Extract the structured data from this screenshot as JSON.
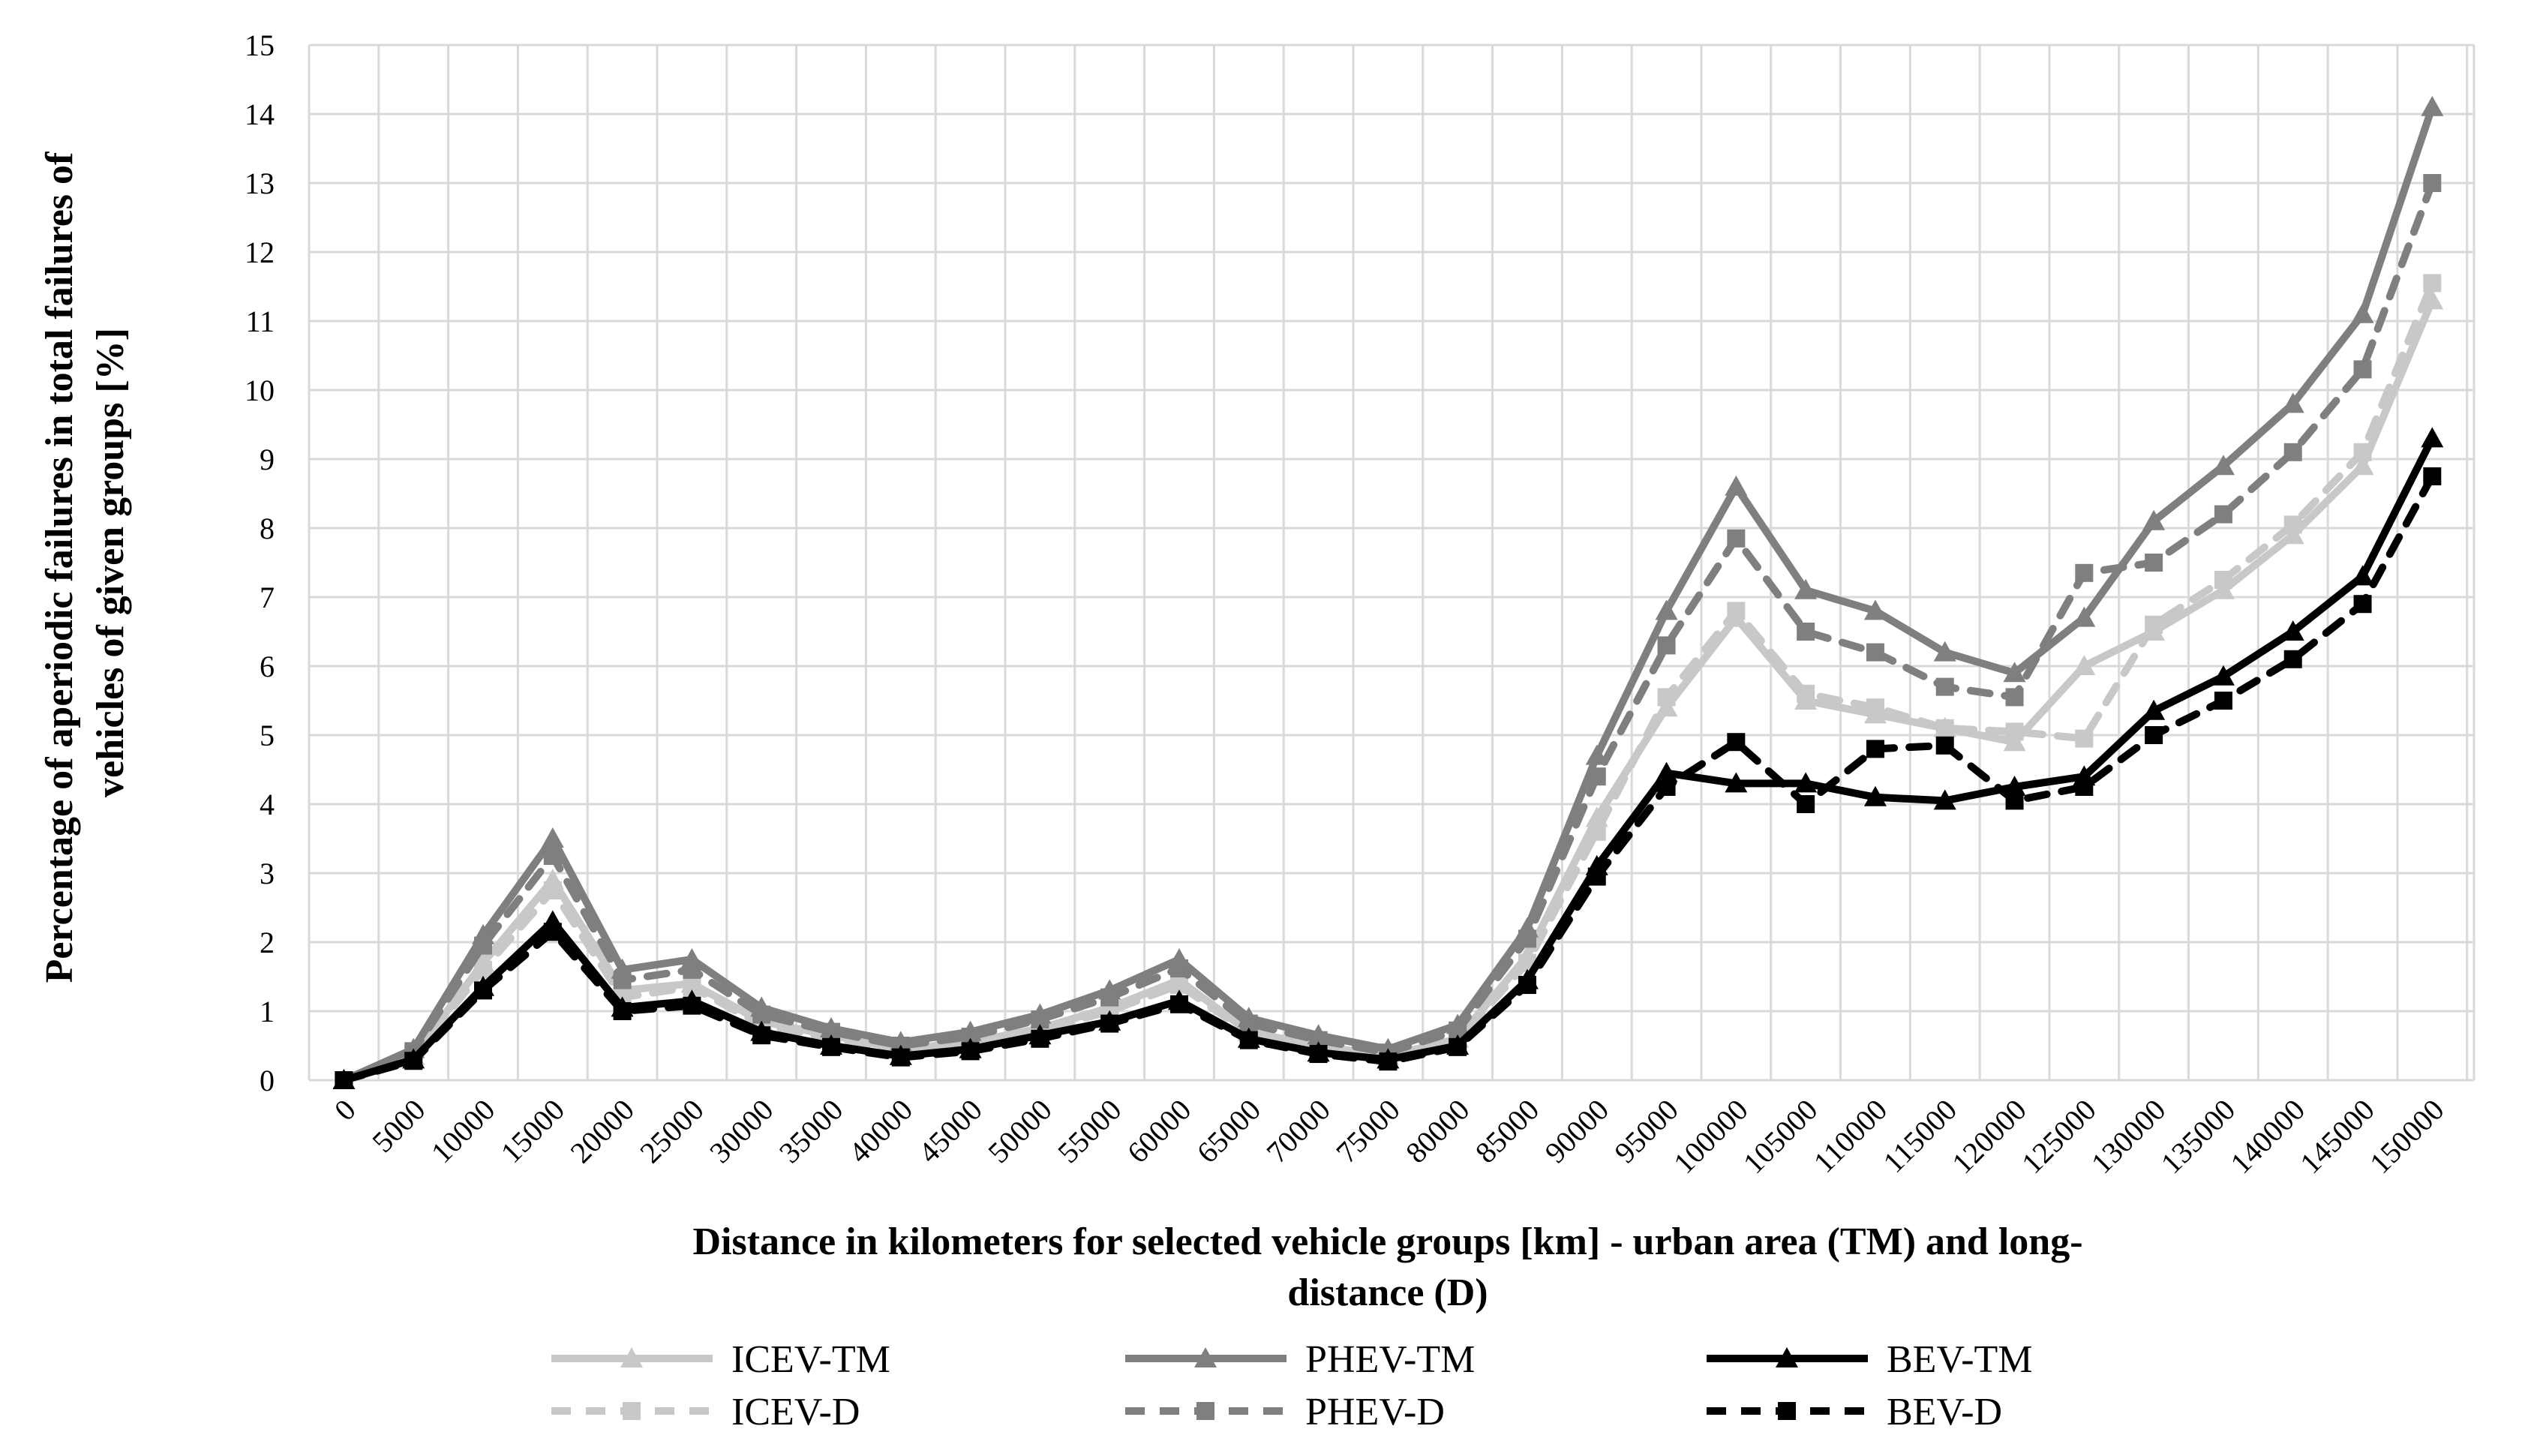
{
  "chart_data": {
    "type": "line",
    "title": "",
    "xlabel": "Distance in kilometers for selected vehicle groups [km] - urban area (TM) and long-distance (D)",
    "xlabel_lines": [
      "Distance in kilometers for selected vehicle groups [km] - urban area (TM) and long-",
      "distance (D)"
    ],
    "ylabel": "Percentage of aperiodic failures in total failures of vehicles of given groups [%]",
    "ylabel_lines": [
      "Percentage of aperiodic failures in total failures of",
      "vehicles of given groups [%]"
    ],
    "ylim": [
      0,
      15
    ],
    "yticks": [
      0,
      1,
      2,
      3,
      4,
      5,
      6,
      7,
      8,
      9,
      10,
      11,
      12,
      13,
      14,
      15
    ],
    "grid": true,
    "legend_position": "bottom",
    "categories": [
      "0",
      "5000",
      "10000",
      "15000",
      "20000",
      "25000",
      "30000",
      "35000",
      "40000",
      "45000",
      "50000",
      "55000",
      "60000",
      "65000",
      "70000",
      "75000",
      "80000",
      "85000",
      "90000",
      "95000",
      "100000",
      "105000",
      "110000",
      "115000",
      "120000",
      "125000",
      "130000",
      "135000",
      "140000",
      "145000",
      "150000"
    ],
    "series": [
      {
        "name": "ICEV-TM",
        "color": "#c8c8c8",
        "dash": "solid",
        "marker": "triangle",
        "values": [
          0,
          0.35,
          1.7,
          2.9,
          1.3,
          1.4,
          0.85,
          0.65,
          0.45,
          0.55,
          0.75,
          1.05,
          1.45,
          0.7,
          0.5,
          0.35,
          0.6,
          1.8,
          3.8,
          5.4,
          6.7,
          5.5,
          5.3,
          5.1,
          4.9,
          6.0,
          6.5,
          7.1,
          7.9,
          8.9,
          11.3
        ]
      },
      {
        "name": "PHEV-TM",
        "color": "#7f7f7f",
        "dash": "solid",
        "marker": "triangle",
        "values": [
          0,
          0.45,
          2.1,
          3.5,
          1.6,
          1.75,
          1.05,
          0.75,
          0.55,
          0.7,
          0.95,
          1.3,
          1.75,
          0.9,
          0.65,
          0.45,
          0.8,
          2.2,
          4.7,
          6.8,
          8.6,
          7.1,
          6.8,
          6.2,
          5.9,
          6.7,
          8.1,
          8.9,
          9.8,
          11.1,
          14.1
        ]
      },
      {
        "name": "BEV-TM",
        "color": "#000000",
        "dash": "solid",
        "marker": "triangle",
        "values": [
          0,
          0.3,
          1.35,
          2.3,
          1.05,
          1.15,
          0.7,
          0.5,
          0.35,
          0.45,
          0.65,
          0.85,
          1.15,
          0.6,
          0.4,
          0.3,
          0.5,
          1.45,
          3.1,
          4.45,
          4.3,
          4.3,
          4.1,
          4.05,
          4.25,
          4.4,
          5.35,
          5.85,
          6.5,
          7.3,
          9.3
        ]
      },
      {
        "name": "ICEV-D",
        "color": "#c8c8c8",
        "dash": "dashed",
        "marker": "square",
        "values": [
          0,
          0.35,
          1.6,
          2.75,
          1.2,
          1.35,
          0.8,
          0.6,
          0.42,
          0.52,
          0.72,
          1.0,
          1.38,
          0.68,
          0.48,
          0.33,
          0.58,
          1.7,
          3.6,
          5.55,
          6.8,
          5.6,
          5.4,
          5.1,
          5.05,
          4.95,
          6.6,
          7.25,
          8.05,
          9.1,
          11.55
        ]
      },
      {
        "name": "PHEV-D",
        "color": "#7f7f7f",
        "dash": "dashed",
        "marker": "square",
        "values": [
          0,
          0.42,
          1.95,
          3.25,
          1.45,
          1.6,
          0.95,
          0.7,
          0.5,
          0.63,
          0.88,
          1.2,
          1.62,
          0.82,
          0.58,
          0.4,
          0.72,
          2.05,
          4.4,
          6.3,
          7.85,
          6.5,
          6.2,
          5.7,
          5.55,
          7.35,
          7.5,
          8.2,
          9.1,
          10.3,
          13.0
        ]
      },
      {
        "name": "BEV-D",
        "color": "#000000",
        "dash": "dashed",
        "marker": "square",
        "values": [
          0,
          0.28,
          1.3,
          2.15,
          1.0,
          1.08,
          0.65,
          0.48,
          0.33,
          0.42,
          0.6,
          0.82,
          1.1,
          0.58,
          0.38,
          0.27,
          0.48,
          1.38,
          2.95,
          4.25,
          4.9,
          4.0,
          4.8,
          4.85,
          4.05,
          4.25,
          5.0,
          5.5,
          6.1,
          6.9,
          8.75
        ]
      }
    ]
  }
}
